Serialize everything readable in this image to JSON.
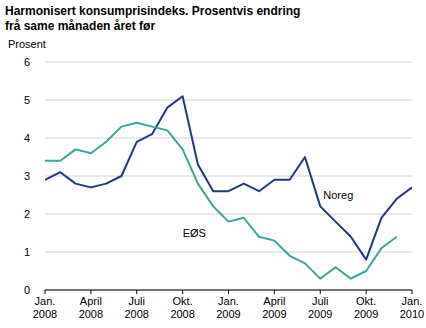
{
  "chart_data": {
    "type": "line",
    "title": "Harmonisert konsumprisindeks. Prosentvis endring frå same månaden året før",
    "y_label": "Prosent",
    "categories": [
      "Jan. 2008",
      null,
      null,
      "April 2008",
      null,
      null,
      "Juli 2008",
      null,
      null,
      "Okt. 2008",
      null,
      null,
      "Jan. 2009",
      null,
      null,
      "April 2009",
      null,
      null,
      "Juli 2009",
      null,
      null,
      "Okt. 2009",
      null,
      null,
      "Jan. 2010"
    ],
    "series": [
      {
        "name": "Noreg",
        "color": "#1c3a7e",
        "values": [
          2.9,
          3.1,
          2.8,
          2.7,
          2.8,
          3.0,
          3.9,
          4.1,
          4.8,
          5.1,
          3.3,
          2.6,
          2.6,
          2.8,
          2.6,
          2.9,
          2.9,
          3.5,
          2.2,
          1.8,
          1.4,
          0.8,
          1.9,
          2.4,
          2.7
        ]
      },
      {
        "name": "EØS",
        "color": "#3aa59d",
        "values": [
          3.4,
          3.4,
          3.7,
          3.6,
          3.9,
          4.3,
          4.4,
          4.3,
          4.2,
          3.7,
          2.8,
          2.2,
          1.8,
          1.9,
          1.4,
          1.3,
          0.9,
          0.7,
          0.3,
          0.6,
          0.3,
          0.5,
          1.1,
          1.4,
          null
        ]
      }
    ],
    "ylim": [
      0,
      6
    ],
    "yticks": [
      0,
      1,
      2,
      3,
      4,
      5,
      6
    ],
    "grid": true
  }
}
